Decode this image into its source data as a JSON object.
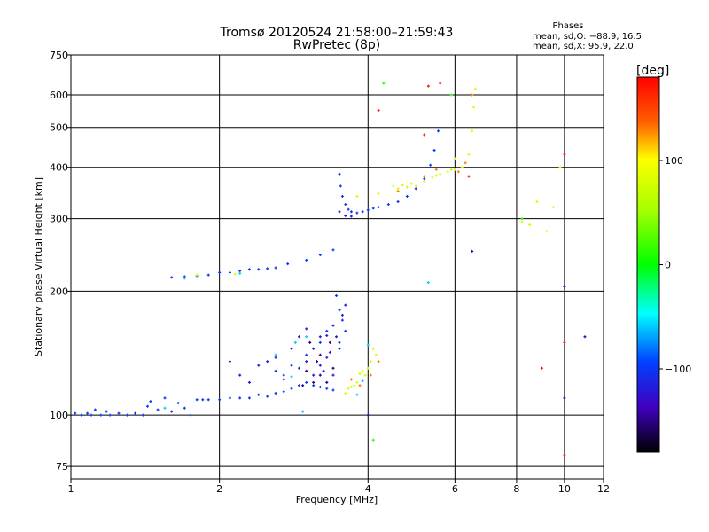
{
  "chart_data": {
    "type": "scatter",
    "title": "Tromsø 20120524 21:58:00–21:59:43",
    "subtitle": "RwPretec (8p)",
    "xlabel": "Frequency [MHz]",
    "ylabel": "Stationary phase Virtual Height [km]",
    "x_scale": "log",
    "y_scale": "log",
    "xlim": [
      1,
      12
    ],
    "ylim": [
      70,
      750
    ],
    "x_ticks": [
      1,
      2,
      4,
      6,
      8,
      10,
      12
    ],
    "x_tick_labels": [
      "1",
      "2",
      "4",
      "6",
      "8",
      "10",
      "12"
    ],
    "y_ticks": [
      75,
      100,
      200,
      300,
      400,
      500,
      600,
      750
    ],
    "y_tick_labels": [
      "75",
      "100",
      "200",
      "300",
      "400",
      "500",
      "600",
      "750"
    ],
    "grid": true,
    "phases_box": {
      "title": "Phases",
      "line1": "mean, sd,O: −88.9, 16.5",
      "line2": "mean, sd,X:  95.9, 22.0"
    },
    "colorbar": {
      "label": "[deg]",
      "range": [
        -180,
        180
      ],
      "ticks": [
        100,
        0,
        -100
      ],
      "tick_labels": [
        "100",
        "0",
        "−100"
      ]
    },
    "series": [
      {
        "phase": -100,
        "points": [
          [
            1.02,
            101
          ],
          [
            1.05,
            100
          ],
          [
            1.08,
            101
          ],
          [
            1.1,
            100
          ],
          [
            1.12,
            103
          ],
          [
            1.15,
            100
          ],
          [
            1.18,
            102
          ],
          [
            1.2,
            100
          ],
          [
            1.25,
            101
          ],
          [
            1.3,
            100
          ],
          [
            1.35,
            101
          ],
          [
            1.4,
            100
          ],
          [
            1.43,
            105
          ],
          [
            1.45,
            108
          ],
          [
            1.5,
            103
          ],
          [
            1.55,
            110
          ],
          [
            1.6,
            102
          ],
          [
            1.65,
            107
          ],
          [
            1.7,
            104
          ],
          [
            1.75,
            100
          ],
          [
            1.8,
            109
          ],
          [
            1.85,
            109
          ],
          [
            1.9,
            109
          ],
          [
            2.0,
            109
          ],
          [
            2.1,
            110
          ],
          [
            2.2,
            110
          ],
          [
            2.3,
            110
          ],
          [
            2.4,
            112
          ],
          [
            2.5,
            111
          ],
          [
            2.6,
            113
          ],
          [
            2.7,
            114
          ],
          [
            2.8,
            116
          ],
          [
            2.9,
            118
          ],
          [
            3.0,
            120
          ],
          [
            3.1,
            118
          ],
          [
            3.2,
            117
          ],
          [
            3.3,
            116
          ],
          [
            3.4,
            115
          ],
          [
            2.5,
            135
          ],
          [
            2.6,
            128
          ],
          [
            2.7,
            125
          ],
          [
            2.8,
            132
          ],
          [
            2.9,
            130
          ],
          [
            3.0,
            140
          ],
          [
            3.2,
            150
          ],
          [
            3.3,
            160
          ],
          [
            3.45,
            195
          ],
          [
            3.5,
            180
          ],
          [
            3.55,
            170
          ],
          [
            3.6,
            160
          ],
          [
            3.5,
            150
          ],
          [
            1.6,
            216
          ],
          [
            1.7,
            217
          ],
          [
            1.8,
            218
          ],
          [
            1.9,
            219
          ],
          [
            2.0,
            222
          ],
          [
            2.1,
            222
          ],
          [
            2.2,
            224
          ],
          [
            2.3,
            226
          ],
          [
            2.4,
            226
          ],
          [
            2.5,
            227
          ],
          [
            2.6,
            228
          ],
          [
            2.75,
            233
          ],
          [
            3.0,
            238
          ],
          [
            3.2,
            245
          ],
          [
            3.4,
            252
          ],
          [
            3.5,
            385
          ],
          [
            3.52,
            360
          ],
          [
            3.55,
            340
          ],
          [
            3.6,
            325
          ],
          [
            3.65,
            316
          ],
          [
            3.7,
            312
          ],
          [
            3.8,
            310
          ],
          [
            3.9,
            312
          ],
          [
            4.0,
            315
          ],
          [
            4.1,
            318
          ],
          [
            4.2,
            320
          ],
          [
            4.4,
            325
          ],
          [
            4.6,
            330
          ],
          [
            4.8,
            340
          ],
          [
            5.0,
            355
          ],
          [
            5.2,
            375
          ],
          [
            5.35,
            405
          ],
          [
            5.45,
            440
          ],
          [
            5.55,
            490
          ]
        ]
      },
      {
        "phase": -120,
        "points": [
          [
            2.2,
            125
          ],
          [
            2.4,
            132
          ],
          [
            2.6,
            138
          ],
          [
            2.8,
            145
          ],
          [
            2.9,
            155
          ],
          [
            3.0,
            135
          ],
          [
            3.1,
            145
          ],
          [
            3.2,
            132
          ],
          [
            3.25,
            128
          ],
          [
            3.3,
            138
          ],
          [
            3.35,
            142
          ],
          [
            3.4,
            125
          ],
          [
            3.45,
            155
          ],
          [
            3.5,
            145
          ],
          [
            3.55,
            175
          ],
          [
            3.6,
            185
          ],
          [
            2.3,
            120
          ],
          [
            2.7,
            122
          ],
          [
            3.0,
            162
          ],
          [
            3.3,
            156
          ],
          [
            3.1,
            125
          ],
          [
            3.4,
            165
          ],
          [
            3.2,
            155
          ],
          [
            2.1,
            135
          ],
          [
            3.6,
            305
          ],
          [
            3.7,
            304
          ],
          [
            3.5,
            312
          ]
        ]
      },
      {
        "phase": -150,
        "points": [
          [
            3.0,
            128
          ],
          [
            3.1,
            120
          ],
          [
            3.15,
            135
          ],
          [
            3.2,
            125
          ],
          [
            3.3,
            120
          ],
          [
            3.35,
            150
          ],
          [
            3.4,
            130
          ],
          [
            3.2,
            140
          ],
          [
            3.05,
            150
          ],
          [
            2.95,
            118
          ]
        ]
      },
      {
        "phase": -60,
        "points": [
          [
            1.55,
            104
          ],
          [
            2.6,
            140
          ],
          [
            2.85,
            150
          ],
          [
            3.0,
            155
          ],
          [
            2.8,
            124
          ],
          [
            2.95,
            102
          ],
          [
            1.7,
            215
          ],
          [
            2.2,
            221
          ],
          [
            3.8,
            112
          ],
          [
            3.9,
            121
          ],
          [
            5.3,
            210
          ],
          [
            4.0,
            148
          ]
        ]
      },
      {
        "phase": 80,
        "points": [
          [
            3.6,
            113
          ],
          [
            3.65,
            116
          ],
          [
            3.7,
            117
          ],
          [
            3.75,
            118
          ],
          [
            3.8,
            120
          ],
          [
            3.85,
            126
          ],
          [
            3.9,
            128
          ],
          [
            3.95,
            125
          ],
          [
            4.0,
            130
          ],
          [
            4.05,
            135
          ],
          [
            4.1,
            145
          ],
          [
            4.15,
            140
          ],
          [
            1.8,
            219
          ],
          [
            2.15,
            220
          ],
          [
            4.5,
            360
          ],
          [
            4.6,
            355
          ],
          [
            4.7,
            362
          ],
          [
            4.8,
            358
          ],
          [
            4.9,
            365
          ],
          [
            5.0,
            360
          ],
          [
            5.2,
            370
          ],
          [
            5.4,
            378
          ],
          [
            5.5,
            382
          ],
          [
            5.6,
            385
          ],
          [
            5.8,
            390
          ],
          [
            5.9,
            395
          ],
          [
            6.0,
            395
          ],
          [
            6.2,
            400
          ],
          [
            6.4,
            430
          ],
          [
            6.5,
            490
          ],
          [
            6.55,
            560
          ],
          [
            6.6,
            620
          ],
          [
            8.2,
            295
          ],
          [
            8.8,
            330
          ],
          [
            9.2,
            280
          ],
          [
            9.5,
            320
          ],
          [
            9.8,
            400
          ],
          [
            3.8,
            340
          ],
          [
            4.2,
            345
          ],
          [
            6.0,
            420
          ],
          [
            8.5,
            290
          ]
        ]
      },
      {
        "phase": 130,
        "points": [
          [
            3.7,
            122
          ],
          [
            3.85,
            118
          ],
          [
            4.05,
            125
          ],
          [
            4.2,
            135
          ],
          [
            4.6,
            350
          ],
          [
            5.2,
            380
          ],
          [
            5.5,
            395
          ],
          [
            6.3,
            410
          ],
          [
            6.1,
            390
          ],
          [
            6.5,
            600
          ]
        ]
      },
      {
        "phase": 170,
        "points": [
          [
            4.2,
            550
          ],
          [
            5.2,
            480
          ],
          [
            5.6,
            640
          ],
          [
            6.4,
            380
          ],
          [
            9.0,
            130
          ],
          [
            10.0,
            150
          ],
          [
            10.0,
            80
          ],
          [
            10.0,
            430
          ],
          [
            5.3,
            630
          ]
        ]
      },
      {
        "phase": -140,
        "points": [
          [
            10.0,
            205
          ],
          [
            10.0,
            110
          ],
          [
            11.0,
            155
          ],
          [
            4.0,
            100
          ],
          [
            6.5,
            250
          ]
        ]
      },
      {
        "phase": 10,
        "points": [
          [
            4.1,
            87
          ],
          [
            8.2,
            300
          ],
          [
            4.3,
            640
          ],
          [
            5.9,
            600
          ]
        ]
      }
    ]
  }
}
